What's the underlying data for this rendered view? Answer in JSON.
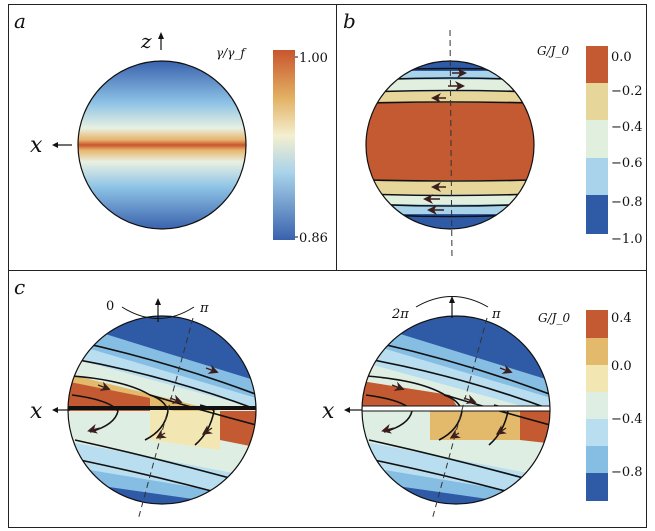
{
  "figure": {
    "panel_a": {
      "label": "a",
      "z_axis_label": "z",
      "x_axis_label": "x",
      "colorbar_title": "γ/γ_f",
      "colorbar_max": "1.00",
      "colorbar_min": "0.86",
      "colors": {
        "high": "#c8552e",
        "mid": "#f4efcf",
        "low": "#3a62ad"
      }
    },
    "panel_b": {
      "label": "b",
      "colorbar_title": "G/J_0",
      "colorbar_ticks": [
        "0.0",
        "−0.2",
        "−0.4",
        "−0.6",
        "−0.8",
        "−1.0"
      ],
      "band_colors": [
        "#c45a32",
        "#e7d699",
        "#e1efdf",
        "#a8d3ea",
        "#2e5aa6"
      ]
    },
    "panel_c": {
      "label": "c",
      "left_sphere": {
        "angle_left": "0",
        "angle_right": "π",
        "x_axis_label": "x"
      },
      "right_sphere": {
        "angle_left": "2π",
        "angle_right": "π",
        "x_axis_label": "x"
      },
      "colorbar_title": "G/J_0",
      "colorbar_ticks": [
        "0.4",
        "0.0",
        "−0.4",
        "−0.8"
      ],
      "band_colors": [
        "#c45a32",
        "#e3b96b",
        "#f2e7b3",
        "#dfeee2",
        "#b9def0",
        "#86bde3",
        "#2e5aa6"
      ]
    }
  }
}
